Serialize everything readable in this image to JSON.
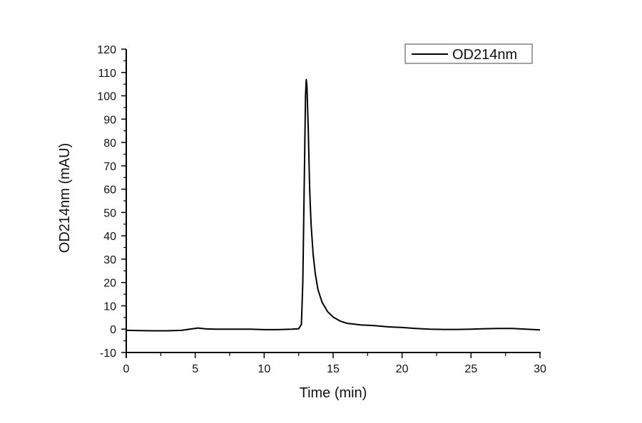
{
  "chart_data": {
    "type": "line",
    "title": "",
    "xlabel": "Time (min)",
    "ylabel": "OD214nm (mAU)",
    "xlim": [
      0,
      30
    ],
    "ylim": [
      -10,
      120
    ],
    "x_ticks": [
      0,
      5,
      10,
      15,
      20,
      25,
      30
    ],
    "y_ticks": [
      -10,
      0,
      10,
      20,
      30,
      40,
      50,
      60,
      70,
      80,
      90,
      100,
      110,
      120
    ],
    "grid": false,
    "legend_position": "top-right",
    "series": [
      {
        "name": "OD214nm",
        "color": "#000000",
        "x": [
          0,
          1,
          2,
          3,
          4,
          4.6,
          5.2,
          5.8,
          6.5,
          8,
          9,
          10,
          11,
          12,
          12.5,
          12.7,
          12.8,
          12.9,
          13.0,
          13.05,
          13.1,
          13.2,
          13.3,
          13.4,
          13.55,
          13.7,
          13.9,
          14.2,
          14.6,
          15.0,
          15.5,
          16.0,
          17.0,
          18.0,
          19.0,
          20.0,
          21.0,
          22.0,
          23.0,
          24.0,
          25.0,
          26.0,
          27.0,
          28.0,
          29.0,
          30.0
        ],
        "y": [
          -0.5,
          -0.6,
          -0.7,
          -0.7,
          -0.5,
          0.0,
          0.5,
          0.1,
          0.0,
          0.0,
          0.0,
          -0.2,
          -0.2,
          0.0,
          0.2,
          2,
          20,
          60,
          100,
          107,
          104,
          85,
          60,
          45,
          32,
          24,
          17,
          11.5,
          7.5,
          5.2,
          3.5,
          2.5,
          1.8,
          1.5,
          1.0,
          0.7,
          0.3,
          0.0,
          -0.1,
          -0.1,
          0.0,
          0.2,
          0.3,
          0.3,
          0.0,
          -0.3
        ]
      }
    ],
    "annotations": []
  },
  "legend": {
    "label": "OD214nm"
  },
  "axes": {
    "x_title": "Time (min)",
    "y_title": "OD214nm (mAU)",
    "x_tick_labels": [
      "0",
      "5",
      "10",
      "15",
      "20",
      "25",
      "30"
    ],
    "y_tick_labels": [
      "-10",
      "0",
      "10",
      "20",
      "30",
      "40",
      "50",
      "60",
      "70",
      "80",
      "90",
      "100",
      "110",
      "120"
    ]
  }
}
